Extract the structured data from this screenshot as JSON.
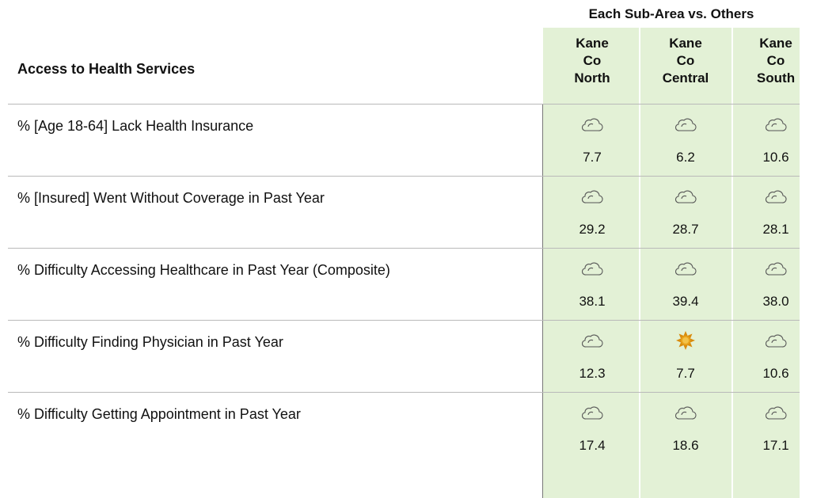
{
  "header": {
    "group_title": "Each Sub-Area vs. Others",
    "title": "Access to Health Services",
    "columns": [
      "Kane Co North",
      "Kane Co Central",
      "Kane Co South"
    ]
  },
  "table": {
    "rows": [
      {
        "label": "% [Age 18-64] Lack Health Insurance",
        "values": [
          "7.7",
          "6.2",
          "10.6"
        ]
      },
      {
        "label": "% [Insured] Went Without Coverage in Past Year",
        "values": [
          "29.2",
          "28.7",
          "28.1"
        ]
      },
      {
        "label": "% Difficulty Accessing Healthcare in Past Year (Composite)",
        "values": [
          "38.1",
          "39.4",
          "38.0"
        ]
      },
      {
        "label": "% Difficulty Finding Physician in Past Year",
        "values": [
          "12.3",
          "7.7",
          "10.6"
        ]
      },
      {
        "label": "% Difficulty Getting Appointment in Past Year",
        "values": [
          "17.4",
          "18.6",
          "17.1"
        ]
      }
    ]
  }
}
